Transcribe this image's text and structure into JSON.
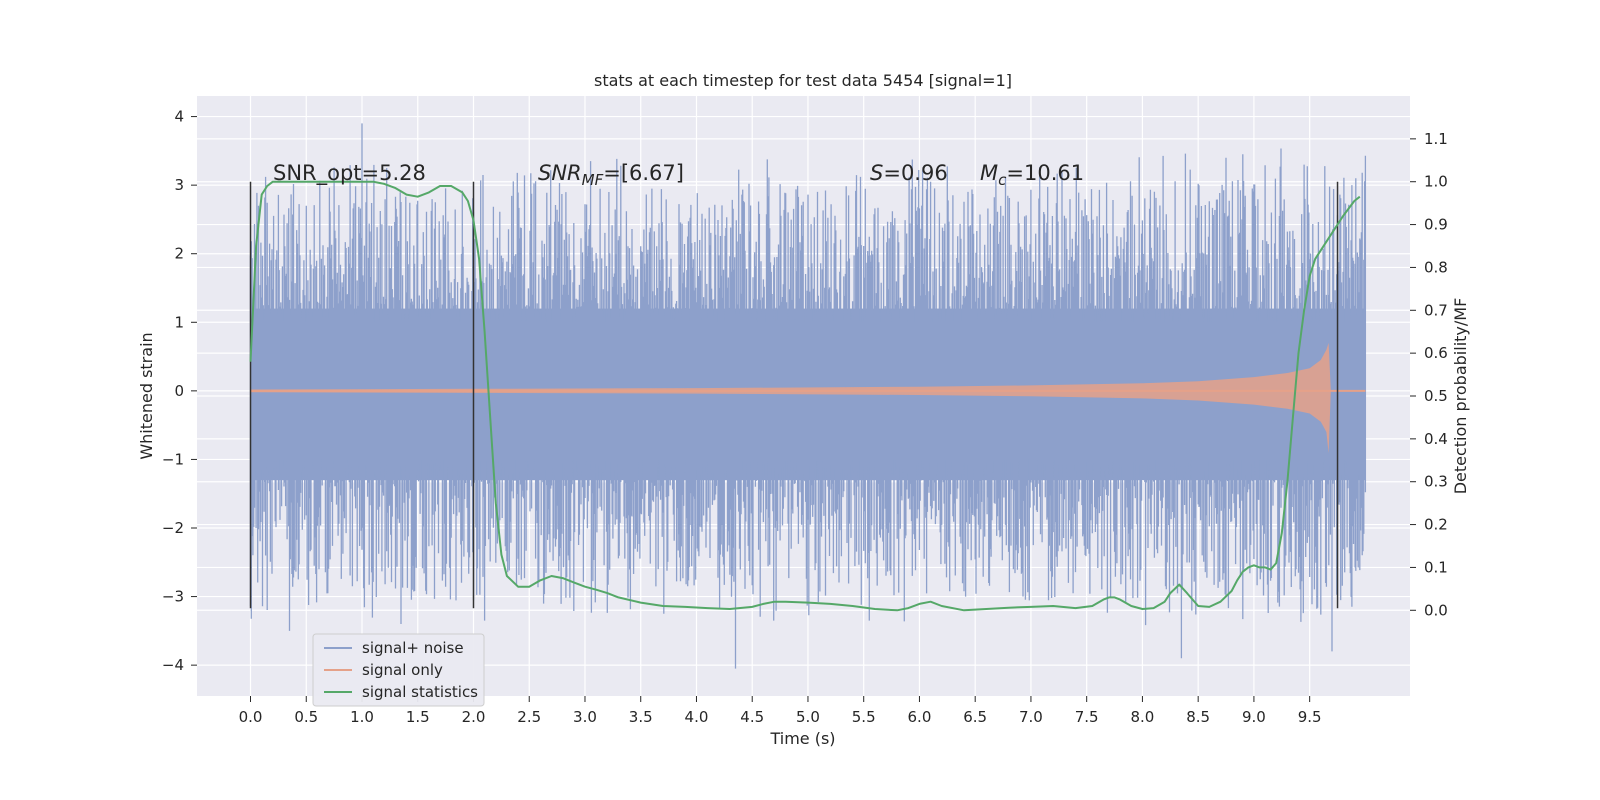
{
  "chart_data": {
    "type": "line",
    "title": "stats at each timestep for test data 5454 [signal=1]",
    "xlabel": "Time (s)",
    "ylabel": "Whitened strain",
    "y2label": "Detection probability/MF",
    "xlim": [
      -0.48,
      10.4
    ],
    "ylim": [
      -4.45,
      4.3
    ],
    "y2lim": [
      -0.2,
      1.2
    ],
    "x_ticks": [
      0.0,
      0.5,
      1.0,
      1.5,
      2.0,
      2.5,
      3.0,
      3.5,
      4.0,
      4.5,
      5.0,
      5.5,
      6.0,
      6.5,
      7.0,
      7.5,
      8.0,
      8.5,
      9.0,
      9.5
    ],
    "x_tick_labels": [
      "0.0",
      "0.5",
      "1.0",
      "1.5",
      "2.0",
      "2.5",
      "3.0",
      "3.5",
      "4.0",
      "4.5",
      "5.0",
      "5.5",
      "6.0",
      "6.5",
      "7.0",
      "7.5",
      "8.0",
      "8.5",
      "9.0",
      "9.5"
    ],
    "y_ticks": [
      -4,
      -3,
      -2,
      -1,
      0,
      1,
      2,
      3,
      4
    ],
    "y_tick_labels": [
      "−4",
      "−3",
      "−2",
      "−1",
      "0",
      "1",
      "2",
      "3",
      "4"
    ],
    "y2_ticks": [
      0.0,
      0.1,
      0.2,
      0.3,
      0.4,
      0.5,
      0.6,
      0.7,
      0.8,
      0.9,
      1.0,
      1.1
    ],
    "y2_tick_labels": [
      "0.0",
      "0.1",
      "0.2",
      "0.3",
      "0.4",
      "0.5",
      "0.6",
      "0.7",
      "0.8",
      "0.9",
      "1.0",
      "1.1"
    ],
    "grid": true,
    "legend_position": "lower-left",
    "annotations": [
      "SNR_opt=5.28",
      "SNR",
      "MF",
      "=[6.67]",
      "S",
      "=0.96",
      "M",
      "c",
      "=10.61"
    ],
    "vlines": {
      "x": [
        0.0,
        2.0,
        9.75
      ],
      "ymin": -3.17,
      "ymax": 3.05,
      "color": "#333333"
    },
    "noise_envelope": {
      "x": [
        0.0,
        1.0,
        2.0,
        3.0,
        4.0,
        5.0,
        6.0,
        7.0,
        8.0,
        9.0,
        10.0
      ],
      "upper_typical": [
        2.2,
        2.3,
        2.2,
        2.3,
        2.2,
        2.2,
        2.3,
        2.3,
        2.3,
        2.4,
        2.4
      ],
      "lower_typical": [
        -2.2,
        -2.2,
        -2.2,
        -2.2,
        -2.2,
        -2.2,
        -2.2,
        -2.2,
        -2.3,
        -2.3,
        -2.2
      ],
      "dense_band": [
        -1.3,
        1.2
      ],
      "notable_peaks": [
        {
          "x": 1.0,
          "y": 3.9
        },
        {
          "x": 3.05,
          "y": 3.35
        },
        {
          "x": 8.75,
          "y": 3.4
        },
        {
          "x": 8.9,
          "y": 3.45
        },
        {
          "x": 9.45,
          "y": 3.3
        }
      ],
      "notable_troughs": [
        {
          "x": 0.35,
          "y": -3.5
        },
        {
          "x": 1.35,
          "y": -3.4
        },
        {
          "x": 2.1,
          "y": -3.35
        },
        {
          "x": 4.35,
          "y": -4.05
        },
        {
          "x": 5.55,
          "y": -3.35
        },
        {
          "x": 8.35,
          "y": -3.9
        },
        {
          "x": 9.7,
          "y": -3.8
        }
      ]
    },
    "chirp_signal": {
      "x": [
        0.0,
        2.0,
        4.0,
        6.0,
        7.0,
        8.0,
        8.5,
        9.0,
        9.3,
        9.5,
        9.6,
        9.65,
        9.67,
        9.69
      ],
      "amplitude": [
        0.02,
        0.03,
        0.04,
        0.06,
        0.08,
        0.11,
        0.14,
        0.2,
        0.26,
        0.33,
        0.45,
        0.6,
        0.7,
        0.0
      ]
    },
    "series": [
      {
        "name": "signal+ noise",
        "color": "#8da0cb"
      },
      {
        "name": "signal only",
        "color": "#e5a189"
      },
      {
        "name": "signal statistics",
        "color": "#55a868",
        "x": [
          0.0,
          0.05,
          0.1,
          0.15,
          0.2,
          0.3,
          0.5,
          0.7,
          0.9,
          1.1,
          1.2,
          1.3,
          1.4,
          1.5,
          1.6,
          1.7,
          1.8,
          1.9,
          1.95,
          2.0,
          2.05,
          2.1,
          2.15,
          2.2,
          2.25,
          2.3,
          2.4,
          2.5,
          2.6,
          2.7,
          2.8,
          2.9,
          3.0,
          3.1,
          3.2,
          3.3,
          3.5,
          3.7,
          3.9,
          4.1,
          4.3,
          4.5,
          4.6,
          4.7,
          4.8,
          5.0,
          5.2,
          5.4,
          5.6,
          5.8,
          5.9,
          6.0,
          6.1,
          6.2,
          6.4,
          6.6,
          6.8,
          7.0,
          7.2,
          7.4,
          7.55,
          7.65,
          7.7,
          7.75,
          7.8,
          7.9,
          8.0,
          8.1,
          8.2,
          8.25,
          8.33,
          8.4,
          8.5,
          8.6,
          8.7,
          8.8,
          8.85,
          8.9,
          8.95,
          9.0,
          9.05,
          9.1,
          9.15,
          9.2,
          9.25,
          9.3,
          9.35,
          9.4,
          9.45,
          9.5,
          9.55,
          9.6,
          9.7,
          9.8,
          9.9,
          9.95
        ],
        "y": [
          0.58,
          0.85,
          0.97,
          0.99,
          1.0,
          1.0,
          1.0,
          1.0,
          1.0,
          1.0,
          0.995,
          0.985,
          0.97,
          0.965,
          0.975,
          0.99,
          0.99,
          0.975,
          0.955,
          0.91,
          0.82,
          0.65,
          0.45,
          0.25,
          0.13,
          0.08,
          0.055,
          0.055,
          0.07,
          0.08,
          0.075,
          0.065,
          0.055,
          0.048,
          0.04,
          0.03,
          0.018,
          0.01,
          0.008,
          0.005,
          0.003,
          0.008,
          0.015,
          0.02,
          0.02,
          0.018,
          0.015,
          0.01,
          0.003,
          0.0,
          0.005,
          0.015,
          0.02,
          0.01,
          0.0,
          0.003,
          0.006,
          0.008,
          0.01,
          0.005,
          0.01,
          0.025,
          0.03,
          0.03,
          0.025,
          0.01,
          0.003,
          0.005,
          0.02,
          0.04,
          0.06,
          0.04,
          0.01,
          0.008,
          0.02,
          0.045,
          0.07,
          0.09,
          0.1,
          0.105,
          0.1,
          0.1,
          0.095,
          0.11,
          0.18,
          0.3,
          0.45,
          0.6,
          0.7,
          0.78,
          0.82,
          0.84,
          0.88,
          0.92,
          0.955,
          0.965
        ]
      }
    ]
  }
}
